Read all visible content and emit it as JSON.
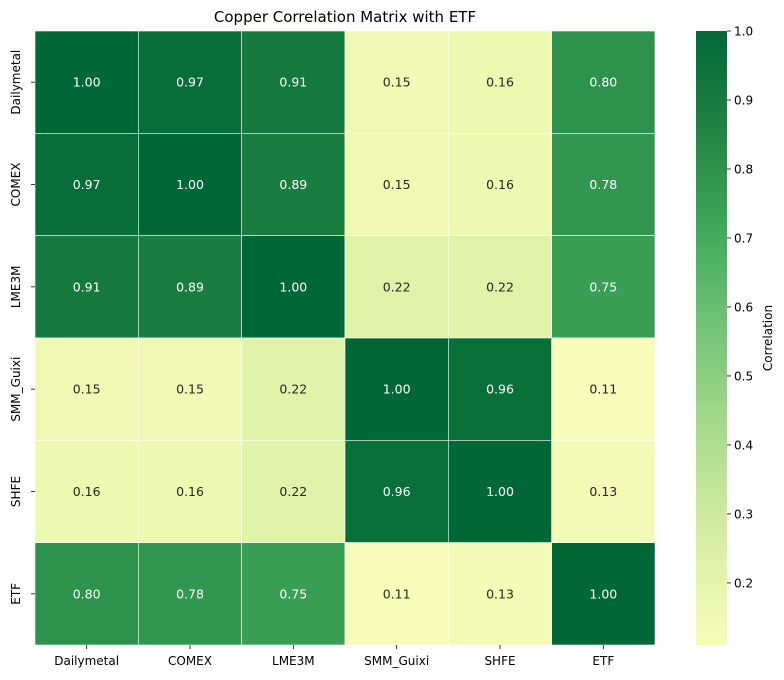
{
  "chart_data": {
    "type": "heatmap",
    "title": "Copper Correlation Matrix with ETF",
    "x_labels": [
      "Dailymetal",
      "COMEX",
      "LME3M",
      "SMM_Guixi",
      "SHFE",
      "ETF"
    ],
    "y_labels": [
      "Dailymetal",
      "COMEX",
      "LME3M",
      "SMM_Guixi",
      "SHFE",
      "ETF"
    ],
    "values": [
      [
        1.0,
        0.97,
        0.91,
        0.15,
        0.16,
        0.8
      ],
      [
        0.97,
        1.0,
        0.89,
        0.15,
        0.16,
        0.78
      ],
      [
        0.91,
        0.89,
        1.0,
        0.22,
        0.22,
        0.75
      ],
      [
        0.15,
        0.15,
        0.22,
        1.0,
        0.96,
        0.11
      ],
      [
        0.16,
        0.16,
        0.22,
        0.96,
        1.0,
        0.13
      ],
      [
        0.8,
        0.78,
        0.75,
        0.11,
        0.13,
        1.0
      ]
    ],
    "value_format": "0.00",
    "colormap": "YlGn",
    "colorbar": {
      "label": "Correlation",
      "range": [
        0.11,
        1.0
      ],
      "ticks": [
        0.2,
        0.3,
        0.4,
        0.5,
        0.6,
        0.7,
        0.8,
        0.9,
        1.0
      ],
      "tick_labels": [
        "0.2",
        "0.3",
        "0.4",
        "0.5",
        "0.6",
        "0.7",
        "0.8",
        "0.9",
        "1.0"
      ]
    },
    "cell_border_color": "#ffffff"
  }
}
